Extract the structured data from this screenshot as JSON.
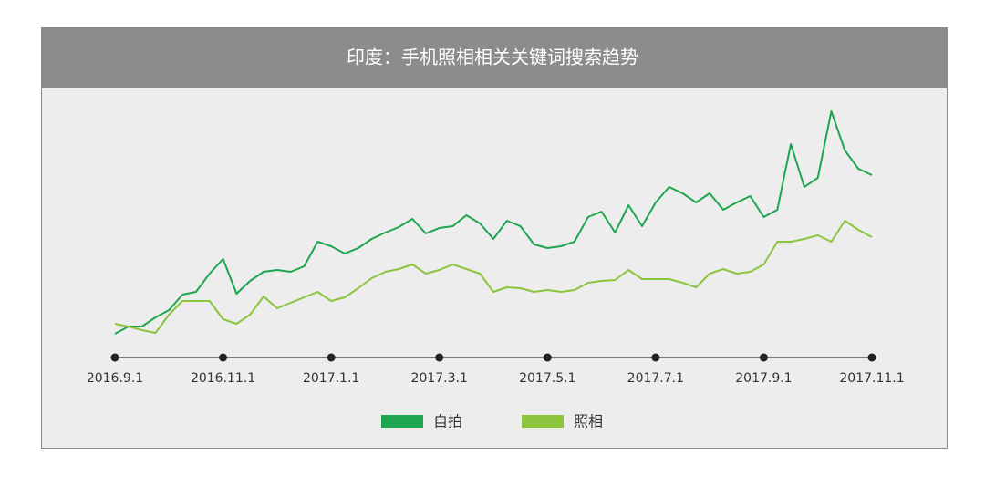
{
  "chart_data": {
    "type": "line",
    "title": "印度：手机照相相关关键词搜索趋势",
    "categories": [
      "2016.9.1",
      null,
      null,
      null,
      null,
      null,
      null,
      null,
      "2016.11.1",
      null,
      null,
      null,
      null,
      null,
      null,
      null,
      "2017.1.1",
      null,
      null,
      null,
      null,
      null,
      null,
      null,
      "2017.3.1",
      null,
      null,
      null,
      null,
      null,
      null,
      null,
      "2017.5.1",
      null,
      null,
      null,
      null,
      null,
      null,
      null,
      "2017.7.1",
      null,
      null,
      null,
      null,
      null,
      null,
      null,
      "2017.9.1",
      null,
      null,
      null,
      null,
      null,
      null,
      null,
      "2017.11.1"
    ],
    "ylim": [
      0,
      300
    ],
    "legend": "bottom",
    "series": [
      {
        "name": "自拍",
        "color": "#1ea550",
        "values": [
          26,
          34,
          34,
          44,
          52,
          69,
          72,
          92,
          108,
          70,
          84,
          94,
          96,
          94,
          100,
          127,
          122,
          114,
          120,
          130,
          137,
          143,
          152,
          136,
          142,
          144,
          156,
          147,
          130,
          150,
          144,
          124,
          120,
          122,
          127,
          154,
          160,
          137,
          167,
          144,
          170,
          187,
          180,
          170,
          180,
          162,
          170,
          177,
          154,
          162,
          234,
          187,
          197,
          270,
          227,
          207,
          200
        ]
      },
      {
        "name": "照相",
        "color": "#8cc43e",
        "values": [
          37,
          34,
          30,
          27,
          47,
          62,
          62,
          62,
          42,
          37,
          47,
          67,
          54,
          60,
          66,
          72,
          62,
          66,
          76,
          87,
          94,
          97,
          102,
          92,
          96,
          102,
          97,
          92,
          72,
          77,
          76,
          72,
          74,
          72,
          74,
          82,
          84,
          85,
          96,
          86,
          86,
          86,
          82,
          77,
          92,
          97,
          92,
          94,
          102,
          127,
          127,
          130,
          134,
          127,
          150,
          140,
          132
        ]
      }
    ]
  }
}
